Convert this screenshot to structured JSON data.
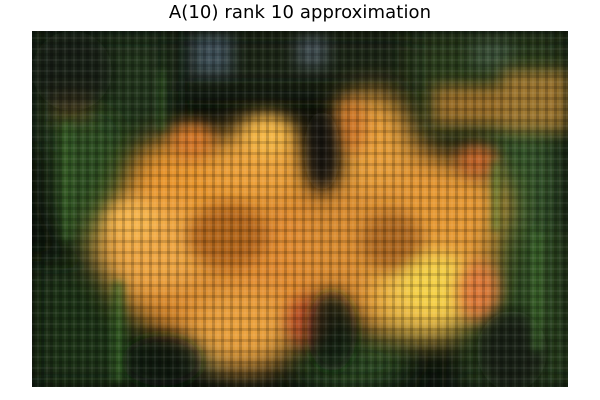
{
  "title": "A(10) rank 10 approximation",
  "image": {
    "subject": "yellow-orange lily flowers",
    "description": "low-rank (rank 10) SVD approximation of a flower photograph: two blurry orange-yellow lily blossoms over a dark green foliage background, with horizontal and vertical banding artifacts",
    "colors": {
      "background": "#0d130c",
      "foliage": "#2c4a22",
      "petal_orange": "#e9962f",
      "petal_yellow": "#f5d14a",
      "petal_red": "#c9562a",
      "sky_blue": "#5b7390"
    }
  }
}
